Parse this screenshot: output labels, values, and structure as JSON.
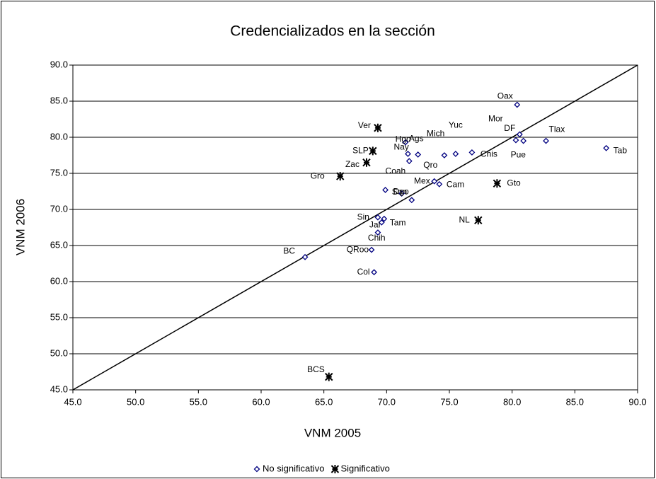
{
  "chart_data": {
    "type": "scatter",
    "title": "Credencializados en la sección",
    "x_label": "VNM 2005",
    "y_label": "VNM 2006",
    "xlim": [
      45,
      90
    ],
    "ylim": [
      45,
      90
    ],
    "xticks": [
      {
        "value": 45,
        "label": "45.0"
      },
      {
        "value": 50,
        "label": "50.0"
      },
      {
        "value": 55,
        "label": "55.0"
      },
      {
        "value": 60,
        "label": "60.0"
      },
      {
        "value": 65,
        "label": "65.0"
      },
      {
        "value": 70,
        "label": "70.0"
      },
      {
        "value": 75,
        "label": "75.0"
      },
      {
        "value": 80,
        "label": "80.0"
      },
      {
        "value": 85,
        "label": "85.0"
      },
      {
        "value": 90,
        "label": "90.0"
      }
    ],
    "yticks": [
      {
        "value": 45,
        "label": "45.0"
      },
      {
        "value": 50,
        "label": "50.0"
      },
      {
        "value": 55,
        "label": "55.0"
      },
      {
        "value": 60,
        "label": "60.0"
      },
      {
        "value": 65,
        "label": "65.0"
      },
      {
        "value": 70,
        "label": "70.0"
      },
      {
        "value": 75,
        "label": "75.0"
      },
      {
        "value": 80,
        "label": "80.0"
      },
      {
        "value": 85,
        "label": "85.0"
      },
      {
        "value": 90,
        "label": "90.0"
      }
    ],
    "grid": true,
    "legend": "bottom",
    "series": [
      {
        "name": "No significativo",
        "color": "#000080",
        "marker": "diamond",
        "labels": [
          "Oax",
          "DF",
          "Mor",
          "Pue",
          "Tlax",
          "Tab",
          "Chis",
          "Yuc",
          "Mich",
          "Ags",
          "Nay",
          "Hgo",
          "Qro",
          "Coah",
          "Mex",
          "Cam",
          "Dgo",
          "Son",
          "Sin",
          "Tam",
          "Jal",
          "Chih",
          "QRoo",
          "BC",
          "Col"
        ],
        "x": [
          80.4,
          80.6,
          80.3,
          80.9,
          82.7,
          87.5,
          76.8,
          75.5,
          74.6,
          71.5,
          71.7,
          72.5,
          71.8,
          69.9,
          73.8,
          74.2,
          71.2,
          72.0,
          69.3,
          69.8,
          69.6,
          69.3,
          68.8,
          63.5,
          69.0
        ],
        "y": [
          84.5,
          80.4,
          79.6,
          79.5,
          79.5,
          78.5,
          77.9,
          77.7,
          77.5,
          79.3,
          77.7,
          77.6,
          76.7,
          72.7,
          73.9,
          73.5,
          72.2,
          71.3,
          68.9,
          68.7,
          68.2,
          66.8,
          64.4,
          63.4,
          61.3
        ]
      },
      {
        "name": "Significativo",
        "color": "#000000",
        "marker": "asterisk",
        "labels": [
          "Ver",
          "SLP",
          "Zac",
          "Gro",
          "Gto",
          "NL",
          "BCS"
        ],
        "x": [
          69.3,
          68.9,
          68.4,
          66.3,
          78.8,
          77.3,
          65.4
        ],
        "y": [
          81.3,
          78.1,
          76.5,
          74.6,
          73.6,
          68.5,
          46.8
        ]
      }
    ]
  }
}
